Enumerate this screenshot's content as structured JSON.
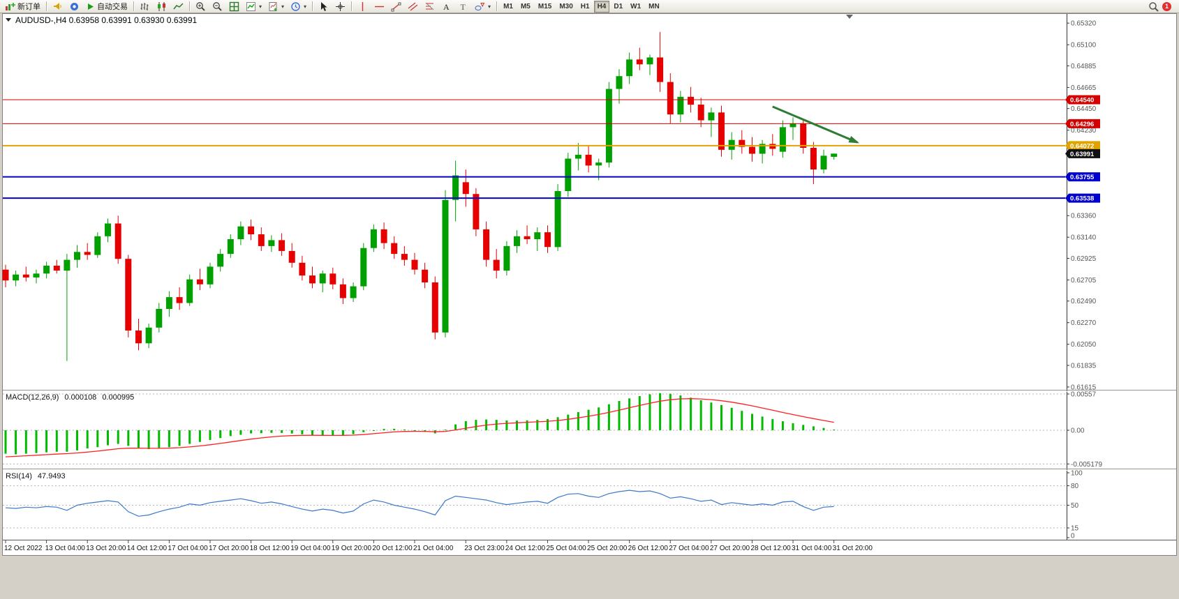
{
  "toolbar": {
    "new_order_label": "新订单",
    "auto_trading_label": "自动交易",
    "timeframes": [
      "M1",
      "M5",
      "M15",
      "M30",
      "H1",
      "H4",
      "D1",
      "W1",
      "MN"
    ],
    "active_timeframe": "H4",
    "notification_badge": "1",
    "icons": [
      "new-order-icon",
      "alert-horn-icon",
      "community-icon",
      "auto-trading-play-icon",
      "bar-chart-type-icon",
      "candlestick-type-icon",
      "line-chart-type-icon",
      "zoom-in-icon",
      "zoom-out-icon",
      "tile-windows-icon",
      "indicators-icon",
      "new-chart-icon",
      "profiles-clock-icon",
      "cursor-icon",
      "crosshair-icon",
      "vertical-line-icon",
      "horizontal-line-icon",
      "trendline-icon",
      "channel-icon",
      "fibonacci-icon",
      "text-icon",
      "label-icon",
      "shapes-icon",
      "search-icon"
    ]
  },
  "chart_data": {
    "type": "candlestick+indicators",
    "symbol_title": "AUDUSD-,H4  0.63958 0.63991 0.63930 0.63991",
    "current_price": "0.63991",
    "colors": {
      "bull": "#00a000",
      "bear": "#e60000",
      "macd_hist": "#00bb00",
      "macd_signal": "#ff2020",
      "rsi": "#3a78c9"
    },
    "price_axis": {
      "labels": [
        "0.65320",
        "0.65100",
        "0.64885",
        "0.64665",
        "0.64450",
        "0.64230",
        "0.63360",
        "0.63140",
        "0.62925",
        "0.62705",
        "0.62490",
        "0.62270",
        "0.62050",
        "0.61835",
        "0.61615"
      ],
      "min": 0.61615,
      "max": 0.6532
    },
    "hlines": [
      {
        "value": "0.64540",
        "color": "#d40000",
        "width": 1
      },
      {
        "value": "0.64296",
        "color": "#d40000",
        "width": 1
      },
      {
        "value": "0.64072",
        "color": "#e0a300",
        "width": 2
      },
      {
        "value": "0.63755",
        "color": "#0000cf",
        "width": 2
      },
      {
        "value": "0.63538",
        "color": "#0000cf",
        "width": 2
      }
    ],
    "arrow": {
      "i1": 75.0,
      "p1": 0.6447,
      "i2": 83.3,
      "p2": 0.64105,
      "color": "#2e7d32"
    },
    "ohlc": [
      [
        0.6281,
        0.6286,
        0.6263,
        0.627
      ],
      [
        0.627,
        0.628,
        0.6264,
        0.6276
      ],
      [
        0.6276,
        0.6284,
        0.6269,
        0.6273
      ],
      [
        0.6273,
        0.6281,
        0.6267,
        0.6277
      ],
      [
        0.6277,
        0.6289,
        0.6272,
        0.6285
      ],
      [
        0.6285,
        0.6291,
        0.6277,
        0.628
      ],
      [
        0.628,
        0.6297,
        0.6188,
        0.6291
      ],
      [
        0.6291,
        0.6306,
        0.6283,
        0.6299
      ],
      [
        0.6299,
        0.6308,
        0.6291,
        0.6296
      ],
      [
        0.6296,
        0.6319,
        0.6293,
        0.6315
      ],
      [
        0.6315,
        0.6333,
        0.6309,
        0.6328
      ],
      [
        0.6328,
        0.6336,
        0.6287,
        0.6292
      ],
      [
        0.6292,
        0.6296,
        0.6212,
        0.6219
      ],
      [
        0.6219,
        0.6231,
        0.6199,
        0.6206
      ],
      [
        0.6206,
        0.6226,
        0.6201,
        0.6222
      ],
      [
        0.6222,
        0.6247,
        0.6217,
        0.6241
      ],
      [
        0.6241,
        0.6259,
        0.6233,
        0.6253
      ],
      [
        0.6253,
        0.6263,
        0.624,
        0.6247
      ],
      [
        0.6247,
        0.6276,
        0.6244,
        0.6271
      ],
      [
        0.6271,
        0.6282,
        0.626,
        0.6266
      ],
      [
        0.6266,
        0.6288,
        0.6262,
        0.6284
      ],
      [
        0.6284,
        0.6302,
        0.6279,
        0.6297
      ],
      [
        0.6297,
        0.6317,
        0.6293,
        0.6312
      ],
      [
        0.6312,
        0.633,
        0.6306,
        0.6325
      ],
      [
        0.6325,
        0.6332,
        0.6311,
        0.6317
      ],
      [
        0.6317,
        0.6324,
        0.63,
        0.6305
      ],
      [
        0.6305,
        0.6316,
        0.6299,
        0.6311
      ],
      [
        0.6311,
        0.6318,
        0.6295,
        0.63
      ],
      [
        0.63,
        0.6308,
        0.6283,
        0.6288
      ],
      [
        0.6288,
        0.6295,
        0.627,
        0.6275
      ],
      [
        0.6275,
        0.6284,
        0.6262,
        0.6267
      ],
      [
        0.6267,
        0.628,
        0.6258,
        0.6277
      ],
      [
        0.6277,
        0.6283,
        0.6261,
        0.6266
      ],
      [
        0.6266,
        0.6272,
        0.6246,
        0.6252
      ],
      [
        0.6252,
        0.6268,
        0.6248,
        0.6264
      ],
      [
        0.6264,
        0.6308,
        0.626,
        0.6303
      ],
      [
        0.6303,
        0.6327,
        0.6299,
        0.6322
      ],
      [
        0.6322,
        0.6329,
        0.6302,
        0.6308
      ],
      [
        0.6308,
        0.6315,
        0.6292,
        0.6297
      ],
      [
        0.6297,
        0.6305,
        0.6285,
        0.6291
      ],
      [
        0.6291,
        0.6298,
        0.6276,
        0.6281
      ],
      [
        0.6281,
        0.6288,
        0.6262,
        0.6268
      ],
      [
        0.6268,
        0.6274,
        0.621,
        0.6217
      ],
      [
        0.6217,
        0.6362,
        0.6212,
        0.6352
      ],
      [
        0.6352,
        0.6392,
        0.633,
        0.6377
      ],
      [
        0.637,
        0.6383,
        0.6345,
        0.6358
      ],
      [
        0.6358,
        0.6364,
        0.6315,
        0.6322
      ],
      [
        0.6322,
        0.633,
        0.6284,
        0.6291
      ],
      [
        0.6291,
        0.6302,
        0.6272,
        0.628
      ],
      [
        0.628,
        0.631,
        0.6275,
        0.6305
      ],
      [
        0.6305,
        0.6321,
        0.6298,
        0.6315
      ],
      [
        0.6315,
        0.6326,
        0.6307,
        0.6312
      ],
      [
        0.6312,
        0.6324,
        0.63,
        0.6319
      ],
      [
        0.6319,
        0.6326,
        0.6298,
        0.6304
      ],
      [
        0.6304,
        0.6368,
        0.63,
        0.6361
      ],
      [
        0.6361,
        0.64,
        0.6355,
        0.6394
      ],
      [
        0.6394,
        0.641,
        0.6382,
        0.6398
      ],
      [
        0.6398,
        0.6407,
        0.638,
        0.6387
      ],
      [
        0.6387,
        0.6394,
        0.6372,
        0.639
      ],
      [
        0.639,
        0.6472,
        0.6385,
        0.6465
      ],
      [
        0.6465,
        0.6485,
        0.645,
        0.6478
      ],
      [
        0.6478,
        0.6502,
        0.647,
        0.6495
      ],
      [
        0.6495,
        0.6507,
        0.6484,
        0.649
      ],
      [
        0.649,
        0.65,
        0.6479,
        0.6497
      ],
      [
        0.6497,
        0.6523,
        0.6462,
        0.6472
      ],
      [
        0.6472,
        0.6481,
        0.643,
        0.6439
      ],
      [
        0.6439,
        0.6463,
        0.6431,
        0.6457
      ],
      [
        0.6457,
        0.6467,
        0.6441,
        0.6449
      ],
      [
        0.6449,
        0.6456,
        0.6426,
        0.6433
      ],
      [
        0.6433,
        0.6446,
        0.6416,
        0.6441
      ],
      [
        0.6441,
        0.6448,
        0.6396,
        0.6403
      ],
      [
        0.6403,
        0.6421,
        0.6393,
        0.6413
      ],
      [
        0.6413,
        0.6423,
        0.6399,
        0.6406
      ],
      [
        0.6406,
        0.6416,
        0.6391,
        0.6399
      ],
      [
        0.6399,
        0.6413,
        0.6389,
        0.6409
      ],
      [
        0.6409,
        0.6419,
        0.6397,
        0.6404
      ],
      [
        0.6401,
        0.6433,
        0.6395,
        0.6426
      ],
      [
        0.6426,
        0.6436,
        0.6413,
        0.643
      ],
      [
        0.643,
        0.6434,
        0.6399,
        0.6405
      ],
      [
        0.6405,
        0.6411,
        0.6368,
        0.6383
      ],
      [
        0.6383,
        0.6403,
        0.6379,
        0.6397
      ],
      [
        0.63958,
        0.63991,
        0.6393,
        0.63991
      ]
    ],
    "time_labels": [
      {
        "i": 0,
        "t": "12 Oct 2022"
      },
      {
        "i": 4,
        "t": "13 Oct 04:00"
      },
      {
        "i": 8,
        "t": "13 Oct 20:00"
      },
      {
        "i": 12,
        "t": "14 Oct 12:00"
      },
      {
        "i": 16,
        "t": "17 Oct 04:00"
      },
      {
        "i": 20,
        "t": "17 Oct 20:00"
      },
      {
        "i": 24,
        "t": "18 Oct 12:00"
      },
      {
        "i": 28,
        "t": "19 Oct 04:00"
      },
      {
        "i": 32,
        "t": "19 Oct 20:00"
      },
      {
        "i": 36,
        "t": "20 Oct 12:00"
      },
      {
        "i": 40,
        "t": "21 Oct 04:00"
      },
      {
        "i": 45,
        "t": "23 Oct 23:00"
      },
      {
        "i": 49,
        "t": "24 Oct 12:00"
      },
      {
        "i": 53,
        "t": "25 Oct 04:00"
      },
      {
        "i": 57,
        "t": "25 Oct 20:00"
      },
      {
        "i": 61,
        "t": "26 Oct 12:00"
      },
      {
        "i": 65,
        "t": "27 Oct 04:00"
      },
      {
        "i": 69,
        "t": "27 Oct 20:00"
      },
      {
        "i": 73,
        "t": "28 Oct 12:00"
      },
      {
        "i": 77,
        "t": "31 Oct 04:00"
      },
      {
        "i": 81,
        "t": "31 Oct 20:00"
      }
    ],
    "macd": {
      "label": "MACD(12,26,9)",
      "value_main": "0.000108",
      "value_signal": "0.000995",
      "axis_labels": [
        "0.00557",
        "0.00",
        "-0.005179"
      ],
      "hist": [
        -0.0036,
        -0.0037,
        -0.0036,
        -0.0035,
        -0.0034,
        -0.0033,
        -0.0033,
        -0.0031,
        -0.0028,
        -0.0026,
        -0.0023,
        -0.0021,
        -0.0024,
        -0.0027,
        -0.0029,
        -0.0028,
        -0.0026,
        -0.0024,
        -0.0021,
        -0.0018,
        -0.0015,
        -0.0012,
        -0.0009,
        -0.0007,
        -0.00048,
        -0.00045,
        -0.0004,
        -0.00042,
        -0.0005,
        -0.00062,
        -0.00075,
        -0.0008,
        -0.00082,
        -0.00078,
        -0.0006,
        -0.0003,
        0.0,
        0.0002,
        0.00022,
        0.00012,
        -5e-05,
        -0.00025,
        -0.00048,
        0.0001,
        0.0009,
        0.0014,
        0.0016,
        0.00165,
        0.0016,
        0.0015,
        0.00148,
        0.00152,
        0.0016,
        0.00172,
        0.002,
        0.0024,
        0.0028,
        0.00315,
        0.0035,
        0.004,
        0.0045,
        0.0049,
        0.00525,
        0.00552,
        0.0057,
        0.0056,
        0.00535,
        0.005,
        0.00462,
        0.00425,
        0.00388,
        0.00345,
        0.00298,
        0.00252,
        0.0021,
        0.00172,
        0.00138,
        0.00108,
        0.00082,
        0.0006,
        0.00035,
        0.000108
      ]
    },
    "rsi": {
      "label": "RSI(14)",
      "value": "47.9493",
      "levels": [
        80,
        50,
        15
      ],
      "axis_labels": [
        "100",
        "80",
        "50",
        "15",
        "0"
      ],
      "values": [
        46,
        45,
        47,
        46,
        48,
        47,
        42,
        50,
        53,
        55,
        57,
        55,
        40,
        33,
        35,
        40,
        44,
        47,
        52,
        50,
        54,
        56,
        58,
        60,
        57,
        53,
        55,
        52,
        48,
        44,
        41,
        44,
        42,
        38,
        41,
        52,
        58,
        55,
        50,
        47,
        44,
        40,
        35,
        57,
        64,
        62,
        60,
        58,
        54,
        51,
        53,
        55,
        56,
        53,
        62,
        67,
        68,
        64,
        62,
        68,
        71,
        73,
        71,
        72,
        68,
        61,
        63,
        60,
        56,
        58,
        51,
        54,
        52,
        50,
        52,
        50,
        55,
        56,
        48,
        42,
        47,
        48
      ]
    }
  }
}
